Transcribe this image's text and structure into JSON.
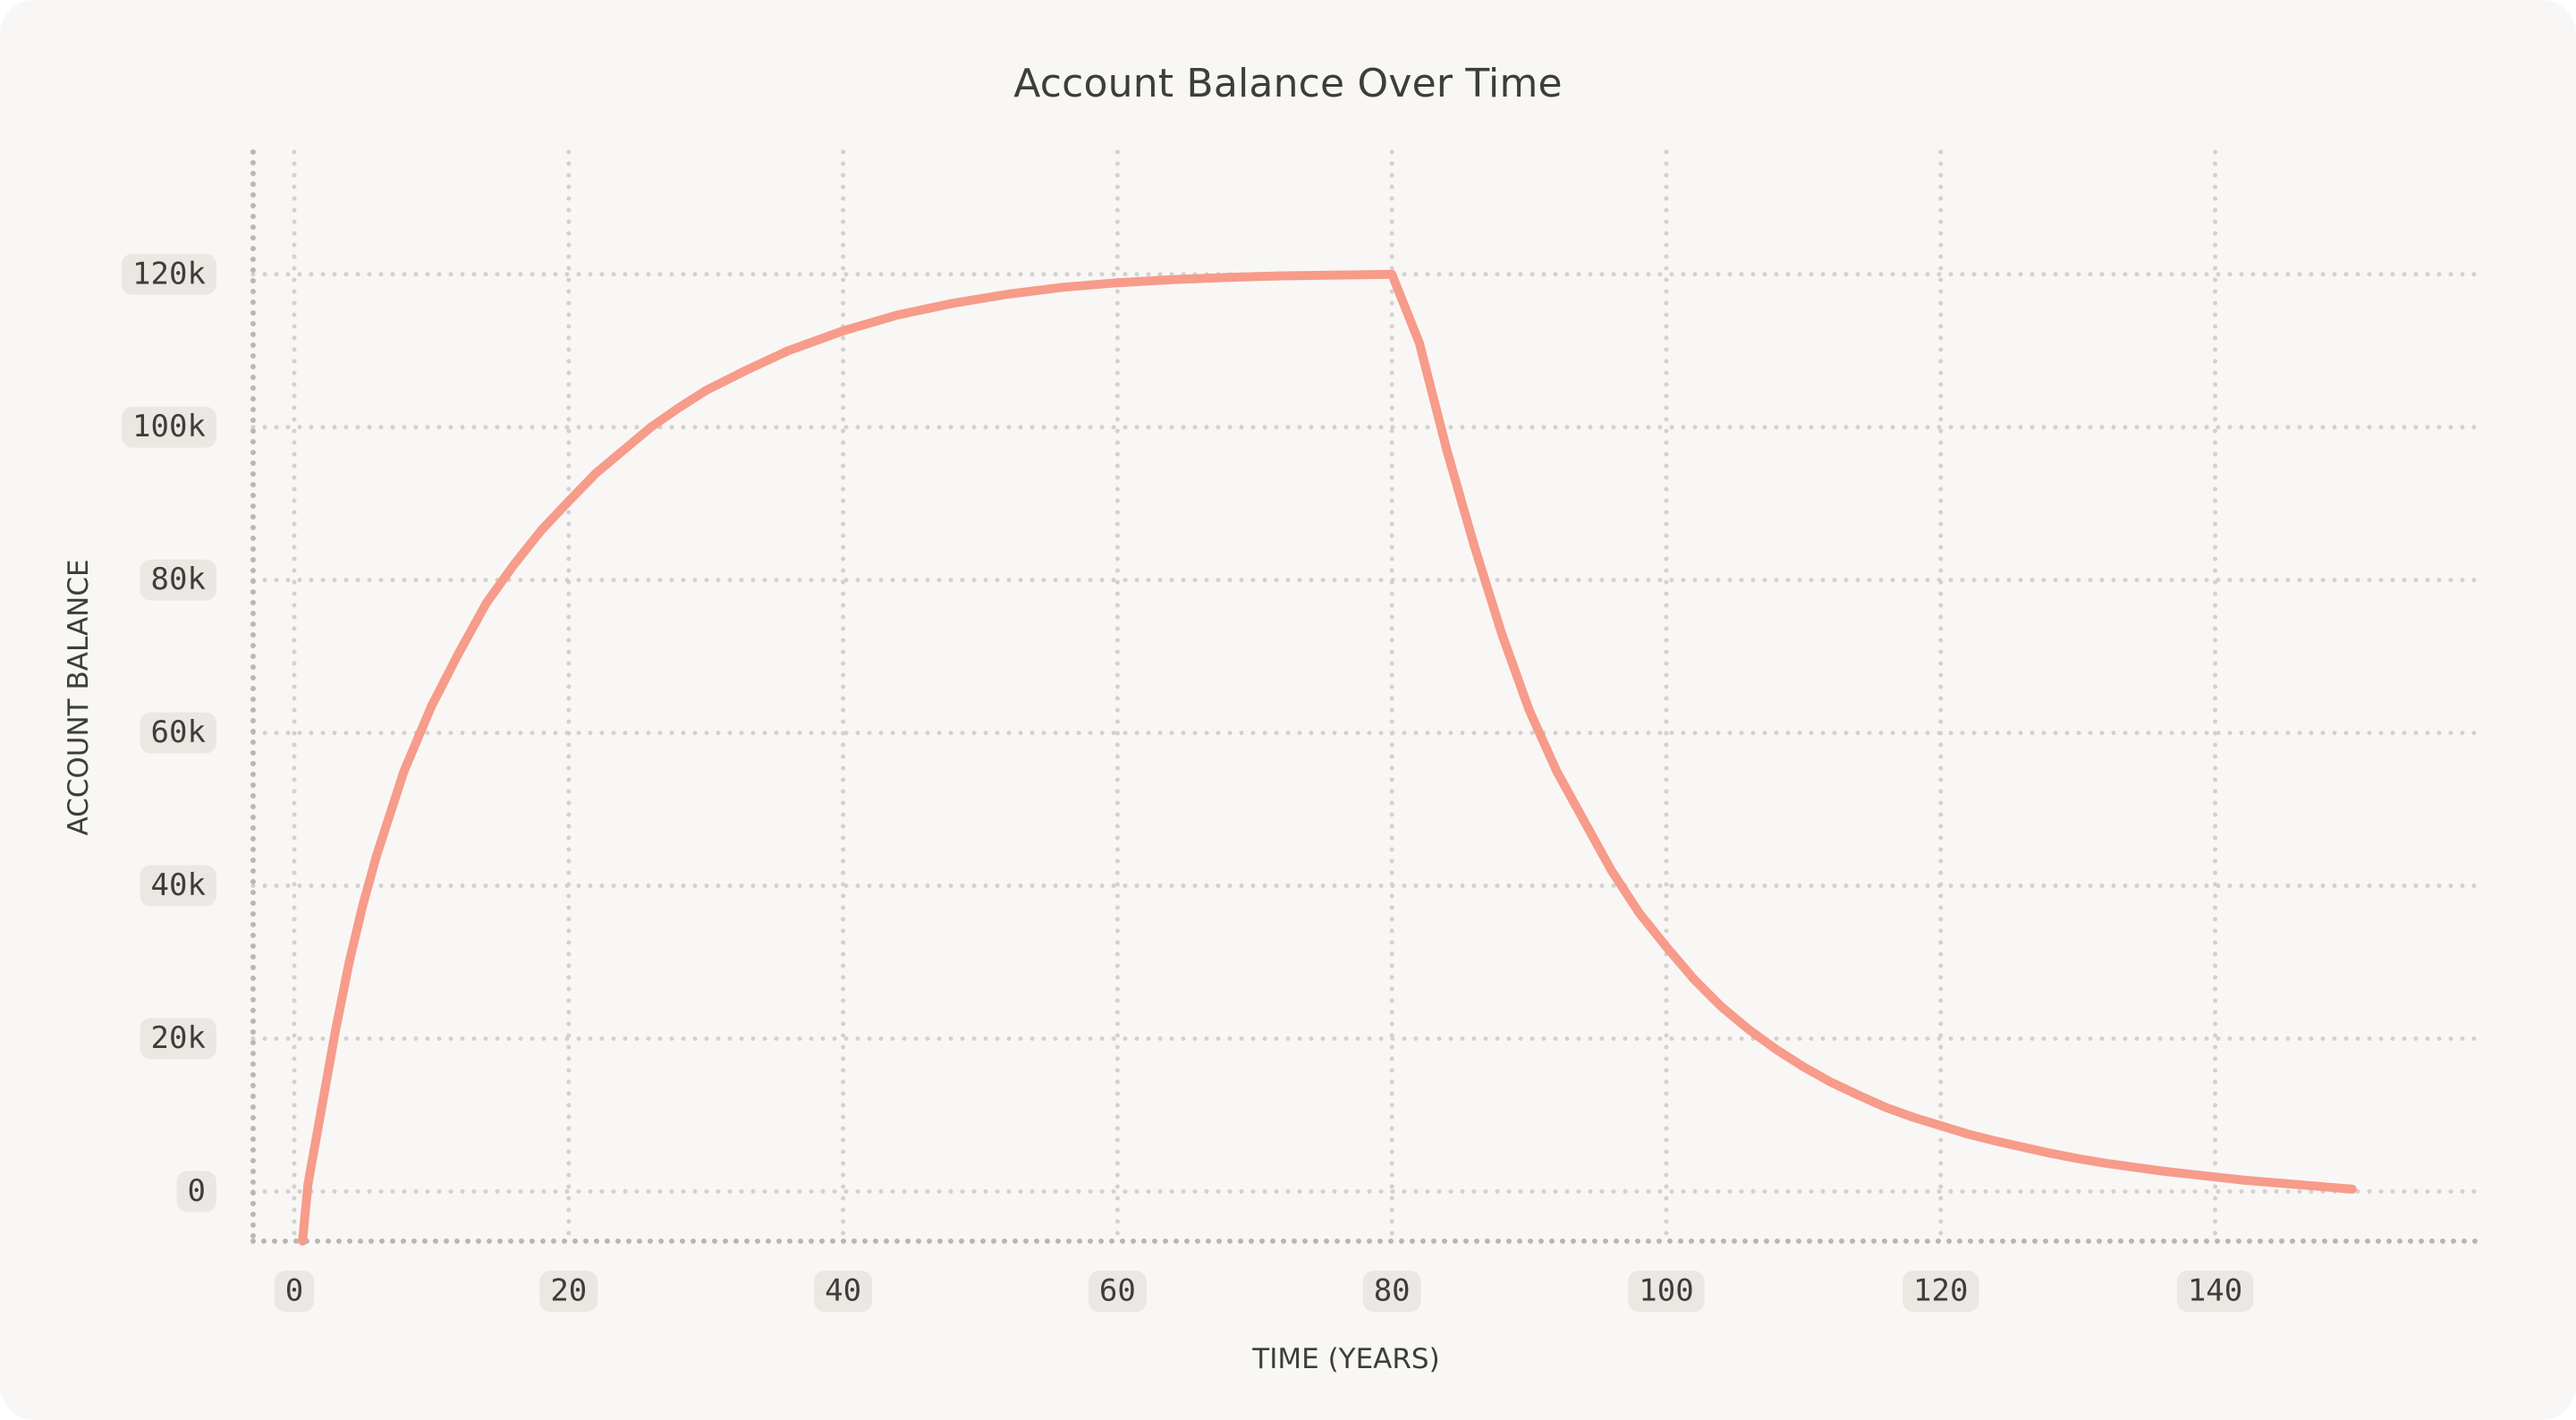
{
  "chart_data": {
    "type": "line",
    "title": "Account Balance Over Time",
    "xlabel": "TIME (YEARS)",
    "ylabel": "ACCOUNT BALANCE",
    "xlim": [
      -3,
      159
    ],
    "ylim": [
      -6500,
      136000
    ],
    "x_ticks": [
      0,
      20,
      40,
      60,
      80,
      100,
      120,
      140
    ],
    "x_tick_labels": [
      "0",
      "20",
      "40",
      "60",
      "80",
      "100",
      "120",
      "140"
    ],
    "y_ticks": [
      0,
      20000,
      40000,
      60000,
      80000,
      100000,
      120000
    ],
    "y_tick_labels": [
      "0",
      "20k",
      "40k",
      "60k",
      "80k",
      "100k",
      "120k"
    ],
    "grid": true,
    "line_color": "#f79b8a",
    "series": [
      {
        "x": [
          0.6,
          1,
          2,
          3,
          4,
          5,
          6,
          8,
          10,
          12,
          14,
          16,
          18,
          20,
          22,
          24,
          26,
          28,
          30,
          33,
          36,
          40,
          44,
          48,
          52,
          56,
          60,
          64,
          68,
          72,
          76,
          80,
          82,
          84,
          86,
          88,
          90,
          92,
          94,
          96,
          98,
          100,
          102,
          104,
          106,
          108,
          110,
          112,
          114,
          116,
          118,
          120,
          122,
          124,
          126,
          128,
          130,
          132,
          134,
          136,
          138,
          140,
          142,
          144,
          146,
          148,
          150
        ],
        "y": [
          -6500,
          1000,
          11000,
          21000,
          30000,
          37500,
          44000,
          55000,
          63500,
          70500,
          77000,
          82000,
          86500,
          90300,
          94000,
          97000,
          100000,
          102500,
          104800,
          107500,
          110000,
          112600,
          114700,
          116200,
          117400,
          118300,
          118900,
          119300,
          119600,
          119800,
          119900,
          120000,
          111000,
          97000,
          84500,
          73000,
          63000,
          55000,
          48500,
          42000,
          36500,
          32000,
          27800,
          24200,
          21200,
          18600,
          16300,
          14300,
          12600,
          11000,
          9700,
          8600,
          7500,
          6600,
          5800,
          5000,
          4300,
          3700,
          3200,
          2700,
          2300,
          1900,
          1500,
          1200,
          900,
          600,
          300
        ]
      }
    ]
  }
}
